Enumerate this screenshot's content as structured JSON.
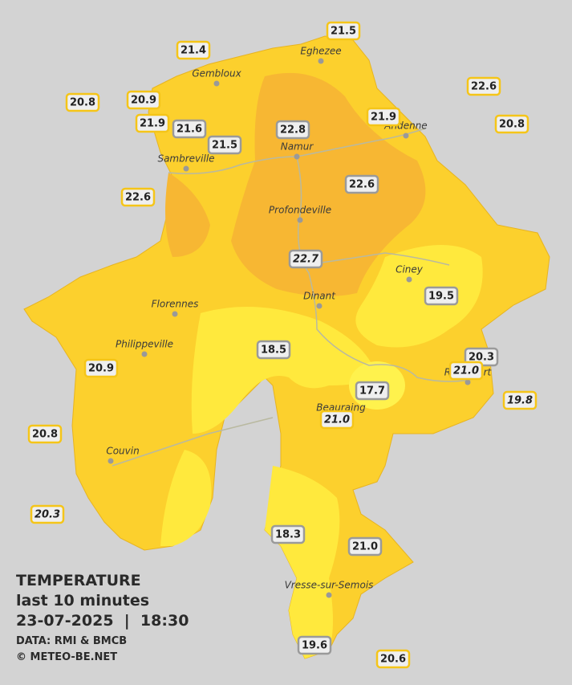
{
  "header": {
    "title": "TEMPERATURE",
    "subtitle": "last 10 minutes",
    "timestamp": "23-07-2025  |  18:30",
    "source": "DATA: RMI & BMCB",
    "copyright": "© METEO-BE.NET"
  },
  "cities": [
    {
      "name": "Eghezee"
    },
    {
      "name": "Gembloux"
    },
    {
      "name": "Andenne"
    },
    {
      "name": "Namur"
    },
    {
      "name": "Sambreville"
    },
    {
      "name": "Profondeville"
    },
    {
      "name": "Ciney"
    },
    {
      "name": "Dinant"
    },
    {
      "name": "Florennes"
    },
    {
      "name": "Philippeville"
    },
    {
      "name": "Rochefort"
    },
    {
      "name": "Beauraing"
    },
    {
      "name": "Couvin"
    },
    {
      "name": "Vresse-sur-Semois"
    }
  ],
  "stations": [
    {
      "value": "21.5",
      "border": "#f5c518",
      "italic": false
    },
    {
      "value": "21.4",
      "border": "#f5c518",
      "italic": false
    },
    {
      "value": "20.8",
      "border": "#f5c518",
      "italic": false
    },
    {
      "value": "20.9",
      "border": "#f5c518",
      "italic": false
    },
    {
      "value": "22.6",
      "border": "#f5c518",
      "italic": false
    },
    {
      "value": "21.9",
      "border": "#f5c518",
      "italic": false
    },
    {
      "value": "20.8",
      "border": "#f5c518",
      "italic": false
    },
    {
      "value": "21.9",
      "border": "#f5c518",
      "italic": false
    },
    {
      "value": "21.6",
      "border": "#9a9a9a",
      "italic": false
    },
    {
      "value": "22.8",
      "border": "#9a9a9a",
      "italic": false
    },
    {
      "value": "21.5",
      "border": "#9a9a9a",
      "italic": false
    },
    {
      "value": "22.6",
      "border": "#9a9a9a",
      "italic": false
    },
    {
      "value": "22.6",
      "border": "#f5c518",
      "italic": false
    },
    {
      "value": "22.7",
      "border": "#9a9a9a",
      "italic": true
    },
    {
      "value": "19.5",
      "border": "#9a9a9a",
      "italic": false
    },
    {
      "value": "18.5",
      "border": "#9a9a9a",
      "italic": false
    },
    {
      "value": "20.3",
      "border": "#9a9a9a",
      "italic": false
    },
    {
      "value": "21.0",
      "border": "#f5c518",
      "italic": true
    },
    {
      "value": "20.9",
      "border": "#f5c518",
      "italic": false
    },
    {
      "value": "17.7",
      "border": "#9a9a9a",
      "italic": false
    },
    {
      "value": "19.8",
      "border": "#f5c518",
      "italic": true
    },
    {
      "value": "21.0",
      "border": "#f5c518",
      "italic": true
    },
    {
      "value": "20.8",
      "border": "#f5c518",
      "italic": false
    },
    {
      "value": "20.3",
      "border": "#f5c518",
      "italic": true
    },
    {
      "value": "18.3",
      "border": "#9a9a9a",
      "italic": false
    },
    {
      "value": "21.0",
      "border": "#9a9a9a",
      "italic": false
    },
    {
      "value": "19.6",
      "border": "#9a9a9a",
      "italic": false
    },
    {
      "value": "20.6",
      "border": "#f5c518",
      "italic": false
    }
  ]
}
